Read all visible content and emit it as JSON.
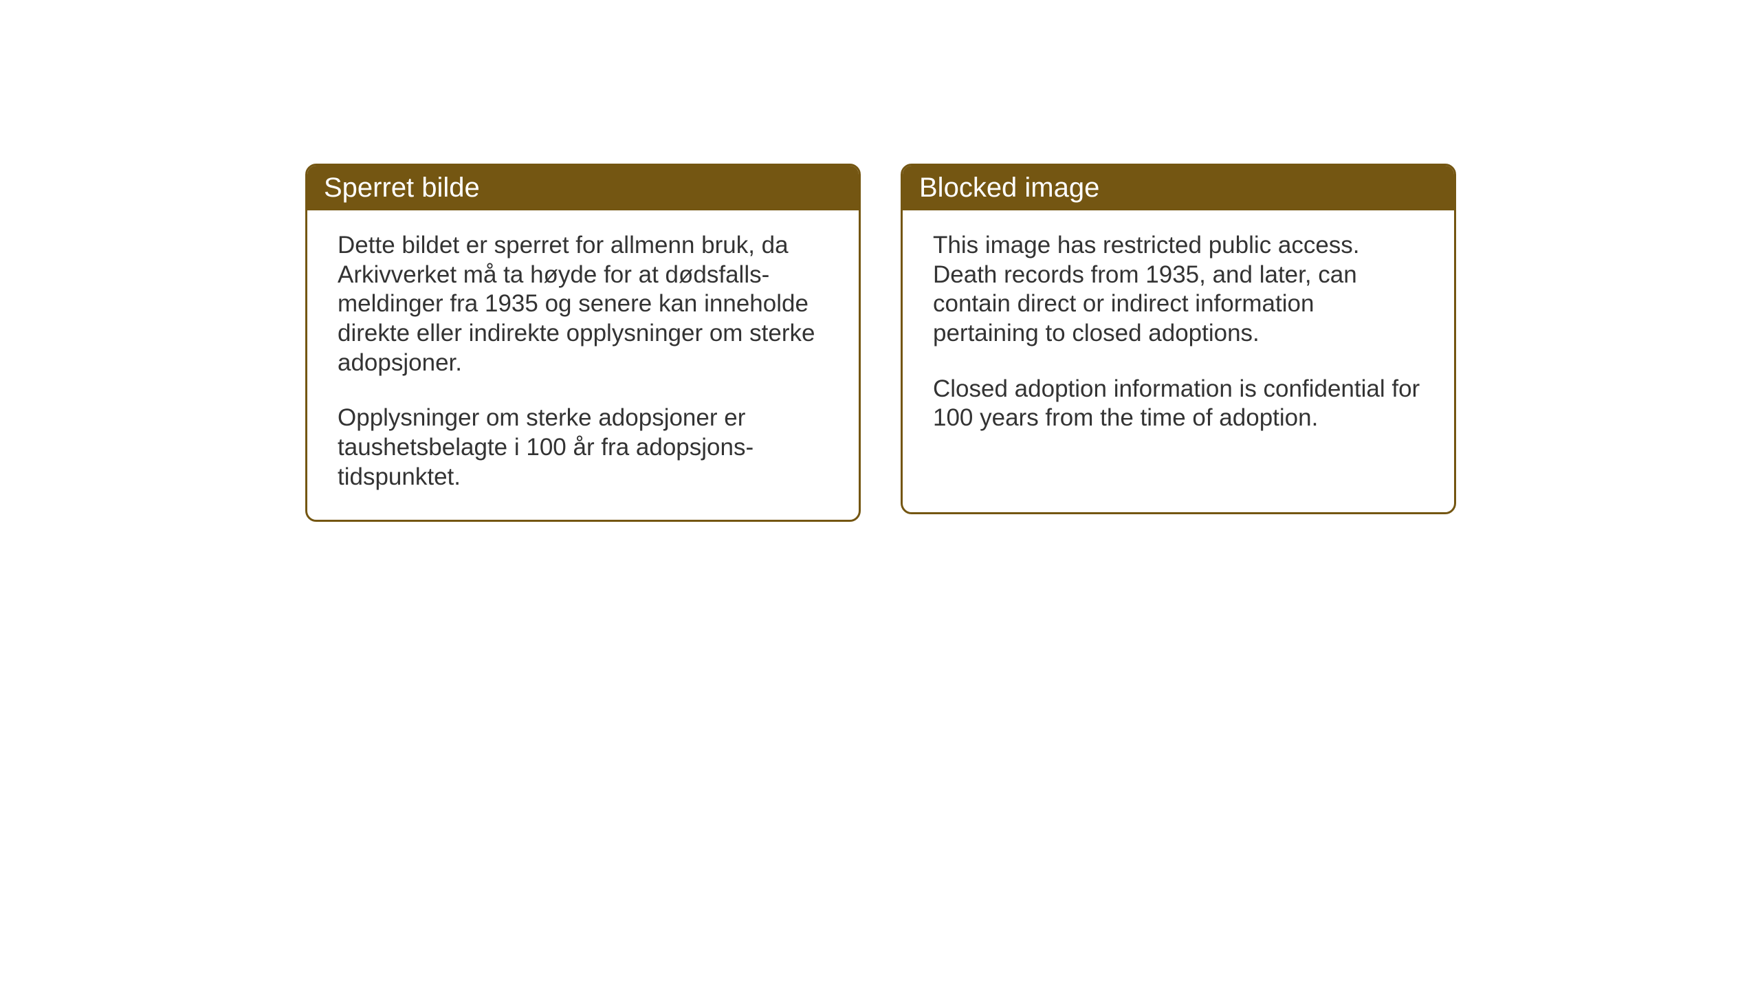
{
  "notices": {
    "norwegian": {
      "title": "Sperret bilde",
      "paragraph1": "Dette bildet er sperret for allmenn bruk, da Arkivverket må ta høyde for at dødsfalls-meldinger fra 1935 og senere kan inneholde direkte eller indirekte opplysninger om sterke adopsjoner.",
      "paragraph2": "Opplysninger om sterke adopsjoner er taushetsbelagte i 100 år fra adopsjons-tidspunktet."
    },
    "english": {
      "title": "Blocked image",
      "paragraph1": "This image has restricted public access. Death records from 1935, and later, can contain direct or indirect information pertaining to closed adoptions.",
      "paragraph2": "Closed adoption information is confidential for 100 years from the time of adoption."
    }
  },
  "styling": {
    "header_background_color": "#745612",
    "header_text_color": "#ffffff",
    "border_color": "#745612",
    "body_background_color": "#ffffff",
    "body_text_color": "#333333",
    "border_radius": 16,
    "border_width": 3,
    "header_font_size": 40,
    "body_font_size": 35
  }
}
